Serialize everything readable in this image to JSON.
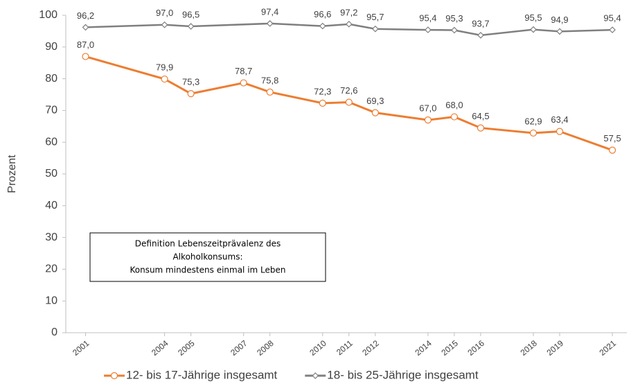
{
  "chart_data": {
    "type": "line",
    "y_label": "Prozent",
    "x": [
      2001,
      2004,
      2005,
      2007,
      2008,
      2010,
      2011,
      2012,
      2014,
      2015,
      2016,
      2018,
      2019,
      2021
    ],
    "xlim": [
      2000.25,
      2021.55
    ],
    "ylim": [
      0,
      100
    ],
    "yticks": [
      0,
      10,
      20,
      30,
      40,
      50,
      60,
      70,
      80,
      90,
      100
    ],
    "grid": false,
    "legend": "bottom",
    "series": [
      {
        "name": "12- bis 17-Jährige insgesamt",
        "color": "#ed7d31",
        "marker": "circle",
        "values": [
          87.0,
          79.9,
          75.3,
          78.7,
          75.8,
          72.3,
          72.6,
          69.3,
          67.0,
          68.0,
          64.5,
          62.9,
          63.4,
          57.5
        ],
        "value_labels": [
          "87,0",
          "79,9",
          "75,3",
          "78,7",
          "75,8",
          "72,3",
          "72,6",
          "69,3",
          "67,0",
          "68,0",
          "64,5",
          "62,9",
          "63,4",
          "57,5"
        ]
      },
      {
        "name": "18- bis 25-Jährige insgesamt",
        "color": "#7f7f7f",
        "marker": "diamond",
        "values": [
          96.2,
          97.0,
          96.5,
          97.4,
          96.6,
          97.2,
          95.7,
          95.4,
          95.3,
          93.7,
          95.5,
          94.9,
          95.4
        ],
        "value_labels": [
          "96,2",
          "97,0",
          "96,5",
          "97,4",
          "96,6",
          "97,2",
          "95,7",
          "95,4",
          "95,3",
          "93,7",
          "95,5",
          "94,9",
          "95,4"
        ],
        "x": [
          2001,
          2004,
          2005,
          2008,
          2010,
          2011,
          2012,
          2014,
          2015,
          2016,
          2018,
          2019,
          2021
        ]
      }
    ],
    "annotation": [
      "Definition Lebenszeitprävalenz des",
      "Alkoholkonsums:",
      "Konsum mindestens einmal im Leben"
    ]
  }
}
